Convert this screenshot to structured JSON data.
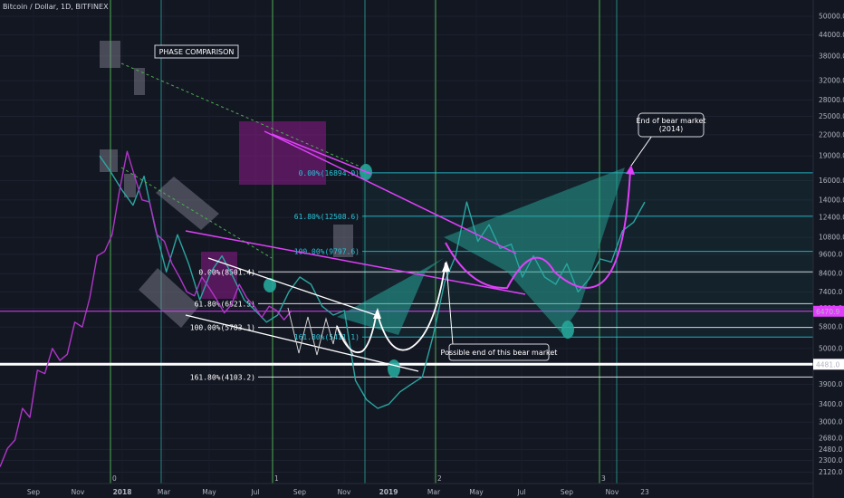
{
  "header": {
    "symbol_line": "Bitcoin / Dollar, 1D, BITFINEX"
  },
  "chart_data": {
    "type": "line",
    "title": "PHASE COMPARISON",
    "scale": "log",
    "price_axis": {
      "ticks": [
        2120,
        2300,
        2480,
        2680,
        3000,
        3400,
        3900,
        4500,
        5000,
        5800,
        6600,
        7400,
        8400,
        9600,
        10800,
        12400,
        14000,
        16000,
        19000,
        22000,
        25000,
        28000,
        32000,
        38000,
        44000,
        50000
      ],
      "labels": [
        "2120.0",
        "2300.0",
        "2480.0",
        "2680.0",
        "3000.0",
        "3400.0",
        "3900.0",
        "4500.0",
        "5000.0",
        "5800.0",
        "6600.0",
        "7400.0",
        "8400.0",
        "9600.0",
        "10800.0",
        "12400.0",
        "14000.0",
        "16000.0",
        "19000.0",
        "22000.0",
        "25000.0",
        "28000.0",
        "32000.0",
        "38000.0",
        "44000.0",
        "50000.0"
      ],
      "range": [
        1960,
        56000
      ]
    },
    "time_axis": {
      "labels": [
        "Sep",
        "Nov",
        "2018",
        "Mar",
        "May",
        "Jul",
        "Sep",
        "Nov",
        "2019",
        "Mar",
        "May",
        "Jul",
        "Sep",
        "Nov",
        "23"
      ]
    },
    "price_badges": [
      {
        "value": 6470,
        "label": "6470.9",
        "color": "#e040fb"
      },
      {
        "value": 4481,
        "label": "4481.0",
        "color": "#ffffff"
      }
    ],
    "cycle_markers": [
      {
        "label": "0",
        "color": "#4caf50"
      },
      {
        "label": "1",
        "color": "#4caf50"
      },
      {
        "label": "2",
        "color": "#4caf50"
      },
      {
        "label": "3",
        "color": "#4caf50"
      }
    ],
    "series": [
      {
        "name": "",
        "color": "#2aa6a1",
        "values": [
          19000,
          17000,
          15000,
          13500,
          16500,
          11500,
          8500,
          11000,
          9000,
          7000,
          8500,
          9500,
          8200,
          7000,
          6500,
          6000,
          6300,
          7400,
          8200,
          7800,
          6700,
          6300,
          6500,
          4000,
          3500,
          3300,
          3400,
          3700,
          3900,
          4100,
          5500,
          7900,
          9500,
          13800,
          10500,
          11800,
          10000,
          10300,
          8200,
          9500,
          8200,
          7800,
          9000,
          7400,
          8100,
          9300,
          9100,
          11300,
          12000,
          13800
        ]
      },
      {
        "name": "",
        "color": "#b035c9",
        "values": [
          2200,
          2500,
          2650,
          3300,
          3100,
          4300,
          4200,
          5000,
          4600,
          4800,
          6000,
          5800,
          7100,
          9500,
          9800,
          11000,
          15000,
          19600,
          16500,
          14000,
          13800,
          11000,
          10500,
          9000,
          8200,
          7400,
          7200,
          8200,
          7600,
          7000,
          6400,
          6800,
          7800,
          7100,
          6700,
          6200,
          6700,
          6500,
          6100,
          6500
        ]
      }
    ],
    "fib_levels": [
      {
        "label": "0.00%(16894.0)",
        "value": 16894,
        "color": "#26c6da"
      },
      {
        "label": "61.80%(12508.6)",
        "value": 12508.6,
        "color": "#26c6da"
      },
      {
        "label": "100.00%(9797.6)",
        "value": 9797.6,
        "color": "#26c6da"
      },
      {
        "label": "161.80%(5411.1)",
        "value": 5411.1,
        "color": "#26c6da"
      },
      {
        "label": "0.00%(8501.4)",
        "value": 8501.4,
        "color": "#ffffff"
      },
      {
        "label": "61.80%(6821.5)",
        "value": 6821.5,
        "color": "#ffffff"
      },
      {
        "label": "100.00%(5783.1)",
        "value": 5783.1,
        "color": "#ffffff"
      },
      {
        "label": "161.80%(4103.2)",
        "value": 4103.2,
        "color": "#ffffff"
      }
    ],
    "annotations": [
      {
        "text": "PHASE COMPARISON"
      },
      {
        "text": "End of bear market\n(2014)"
      },
      {
        "text": "Possible end of this bear market"
      }
    ]
  }
}
